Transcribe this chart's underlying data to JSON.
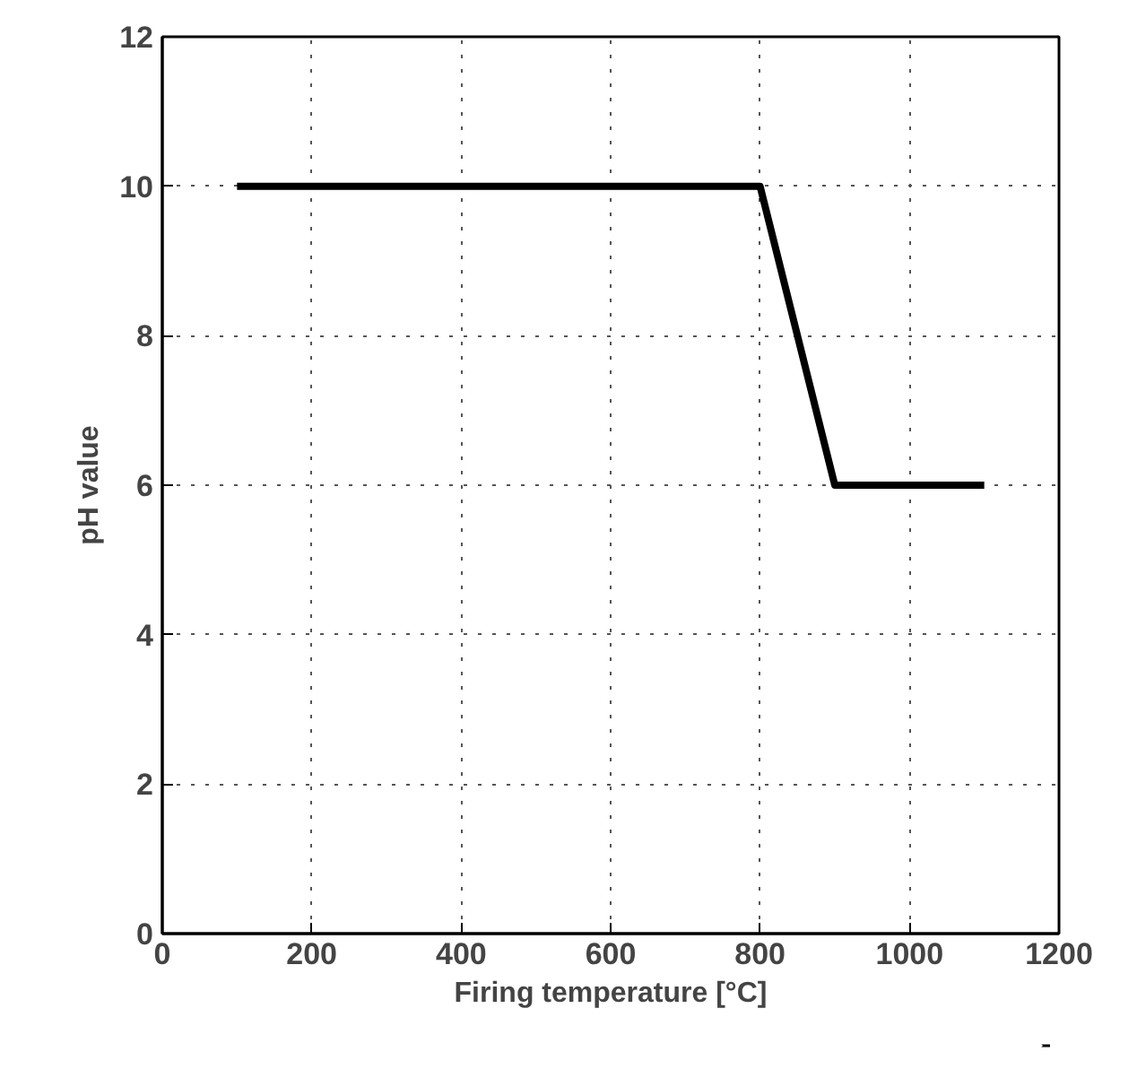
{
  "chart_data": {
    "type": "line",
    "xlabel": "Firing temperature [°C]",
    "ylabel": "pH value",
    "x": [
      100,
      800,
      900,
      1100
    ],
    "series": [
      {
        "color": "#000000",
        "values": [
          10,
          10,
          6,
          6
        ]
      }
    ],
    "xlim": [
      0,
      1200
    ],
    "ylim": [
      0,
      12
    ],
    "xticks": [
      0,
      200,
      400,
      600,
      800,
      1000,
      1200
    ],
    "yticks": [
      0,
      2,
      4,
      6,
      8,
      10,
      12
    ],
    "grid": true,
    "line_style": "solid",
    "marker": "none"
  }
}
